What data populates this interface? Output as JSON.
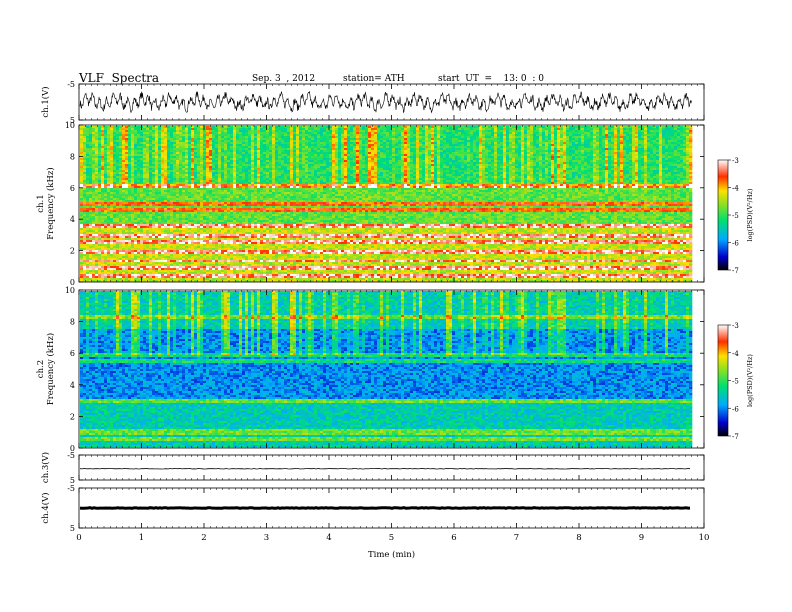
{
  "header": {
    "title": "VLF  Spectra",
    "date": "Sep. 3  , 2012",
    "station": "station= ATH",
    "start": "start  UT  =    13: 0  : 0"
  },
  "chart_data": [
    {
      "type": "line",
      "panel": "ch1-waveform",
      "ylabel": "ch.1(V)",
      "ylim": [
        -5,
        5
      ],
      "yticks": [
        "5",
        "-5"
      ],
      "series": [
        {
          "values_range": [
            -2.5,
            2.5
          ],
          "style": "dense oscillation"
        }
      ]
    },
    {
      "type": "heatmap",
      "panel": "ch1-spectrogram",
      "ylabel": "ch.1\nFrequency  (kHz)",
      "ylim": [
        0,
        10
      ],
      "yticks": [
        "0",
        "2",
        "4",
        "6",
        "8",
        "10"
      ],
      "colorbar": {
        "label": "log(PSD)(V²/Hz)",
        "range": [
          -7,
          -3
        ],
        "ticks": [
          "-3",
          "-4",
          "-5",
          "-6",
          "-7"
        ]
      },
      "strong_bands_khz": [
        0.5,
        1.0,
        1.4,
        2.0,
        2.6,
        3.0,
        3.6,
        4.6,
        5.0,
        6.2
      ],
      "data_end_min": 9.8
    },
    {
      "type": "heatmap",
      "panel": "ch2-spectrogram",
      "ylabel": "ch.2\nFrequency  (kHz)",
      "ylim": [
        0,
        10
      ],
      "yticks": [
        "0",
        "2",
        "4",
        "6",
        "8",
        "10"
      ],
      "colorbar": {
        "label": "log(PSD)(V²/Hz)",
        "range": [
          -7,
          -3
        ],
        "ticks": [
          "-3",
          "-4",
          "-5",
          "-6",
          "-7"
        ]
      },
      "strong_bands_khz": [
        0.6,
        1.0,
        1.2,
        3.0,
        5.6,
        6.0,
        8.4
      ],
      "data_end_min": 9.8
    },
    {
      "type": "line",
      "panel": "ch3-waveform",
      "ylabel": "ch.3(V)",
      "ylim": [
        -5,
        5
      ],
      "yticks": [
        "5",
        "-5"
      ],
      "series": [
        {
          "values": [
            -0.5
          ],
          "style": "flat"
        }
      ]
    },
    {
      "type": "line",
      "panel": "ch4-waveform",
      "ylabel": "ch.4(V)",
      "ylim": [
        -5,
        5
      ],
      "yticks": [
        "5",
        "-5"
      ],
      "series": [
        {
          "values": [
            0
          ],
          "style": "flat thick"
        }
      ]
    }
  ],
  "xaxis": {
    "label": "Time  (min)",
    "range": [
      0,
      10
    ],
    "ticks": [
      "0",
      "1",
      "2",
      "3",
      "4",
      "5",
      "6",
      "7",
      "8",
      "9",
      "10"
    ]
  }
}
